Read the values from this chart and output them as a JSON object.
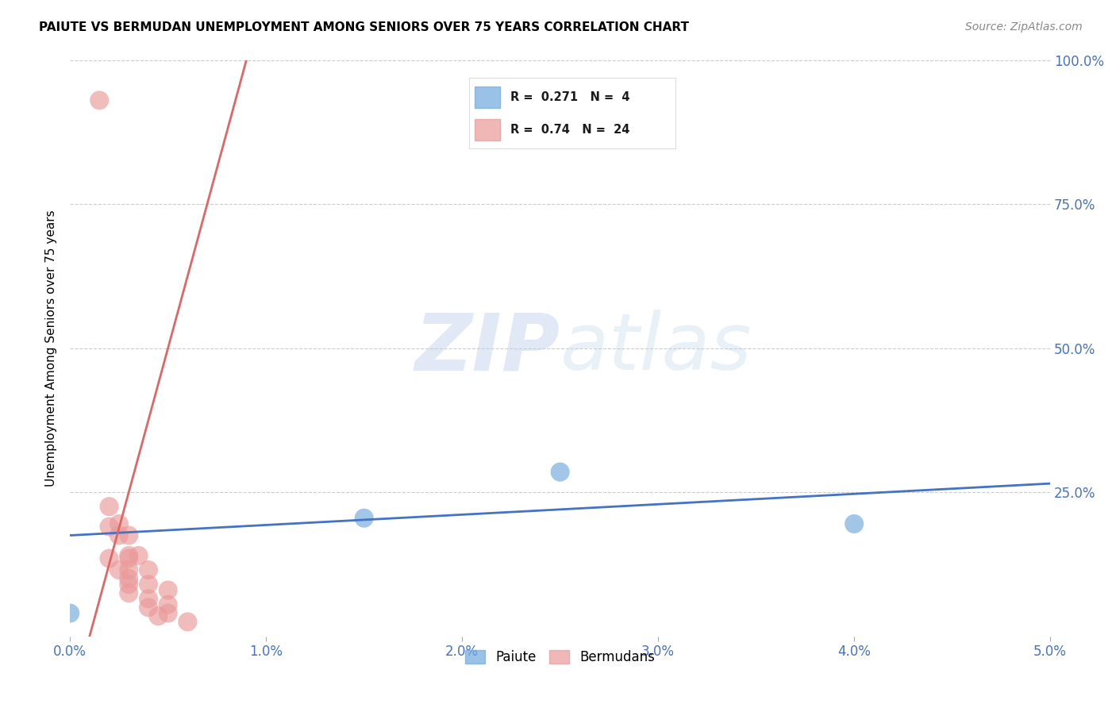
{
  "title": "PAIUTE VS BERMUDAN UNEMPLOYMENT AMONG SENIORS OVER 75 YEARS CORRELATION CHART",
  "source": "Source: ZipAtlas.com",
  "ylabel": "Unemployment Among Seniors over 75 years",
  "xlim": [
    0.0,
    0.05
  ],
  "ylim": [
    0.0,
    1.0
  ],
  "xtick_labels": [
    "0.0%",
    "1.0%",
    "2.0%",
    "3.0%",
    "4.0%",
    "5.0%"
  ],
  "xtick_vals": [
    0.0,
    0.01,
    0.02,
    0.03,
    0.04,
    0.05
  ],
  "ytick_labels": [
    "25.0%",
    "50.0%",
    "75.0%",
    "100.0%"
  ],
  "ytick_vals": [
    0.25,
    0.5,
    0.75,
    1.0
  ],
  "paiute_color": "#6fa8dc",
  "bermudan_color": "#ea9999",
  "paiute_line_color": "#4472c4",
  "bermudan_line_color": "#e06666",
  "paiute_R": 0.271,
  "paiute_N": 4,
  "bermudan_R": 0.74,
  "bermudan_N": 24,
  "legend_label_paiute": "Paiute",
  "legend_label_bermudan": "Bermudans",
  "watermark_zip": "ZIP",
  "watermark_atlas": "atlas",
  "paiute_points": [
    [
      0.0,
      0.04
    ],
    [
      0.015,
      0.205
    ],
    [
      0.025,
      0.285
    ],
    [
      0.04,
      0.195
    ]
  ],
  "bermudan_points": [
    [
      0.0015,
      0.93
    ],
    [
      0.002,
      0.225
    ],
    [
      0.002,
      0.19
    ],
    [
      0.0025,
      0.175
    ],
    [
      0.002,
      0.135
    ],
    [
      0.0025,
      0.195
    ],
    [
      0.003,
      0.175
    ],
    [
      0.003,
      0.14
    ],
    [
      0.0025,
      0.115
    ],
    [
      0.003,
      0.09
    ],
    [
      0.003,
      0.135
    ],
    [
      0.003,
      0.115
    ],
    [
      0.0035,
      0.14
    ],
    [
      0.004,
      0.115
    ],
    [
      0.003,
      0.1
    ],
    [
      0.003,
      0.075
    ],
    [
      0.004,
      0.09
    ],
    [
      0.004,
      0.065
    ],
    [
      0.004,
      0.05
    ],
    [
      0.0045,
      0.035
    ],
    [
      0.005,
      0.08
    ],
    [
      0.005,
      0.055
    ],
    [
      0.005,
      0.04
    ],
    [
      0.006,
      0.025
    ]
  ],
  "paiute_line_x": [
    0.0,
    0.05
  ],
  "paiute_line_y": [
    0.175,
    0.265
  ],
  "bermudan_line_x": [
    0.001,
    0.009
  ],
  "bermudan_line_y": [
    0.0,
    1.0
  ],
  "background_color": "#ffffff",
  "title_fontsize": 11,
  "axis_color": "#4472c4"
}
